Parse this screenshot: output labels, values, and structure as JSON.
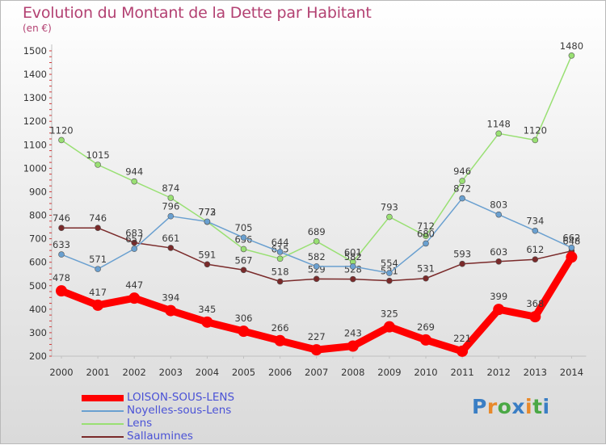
{
  "title": "Evolution du Montant de la Dette par Habitant",
  "subtitle": "(en €)",
  "brand": {
    "text": "Proxiti",
    "colors": [
      "#3a7ec4",
      "#e8892a",
      "#4aa845",
      "#3a7ec4",
      "#e8892a",
      "#4aa845",
      "#3a7ec4"
    ]
  },
  "chart_data": {
    "type": "line",
    "x": [
      "2000",
      "2001",
      "2002",
      "2003",
      "2004",
      "2005",
      "2006",
      "2007",
      "2008",
      "2009",
      "2010",
      "2011",
      "2012",
      "2013",
      "2014"
    ],
    "ylim": [
      200,
      1500
    ],
    "yticks": [
      200,
      300,
      400,
      500,
      600,
      700,
      800,
      900,
      1000,
      1100,
      1200,
      1300,
      1400,
      1500
    ],
    "grid": false,
    "legend_position": "bottom",
    "series": [
      {
        "name": "LOISON-SOUS-LENS",
        "color": "#ff0000",
        "values": [
          478,
          417,
          447,
          394,
          345,
          306,
          266,
          227,
          243,
          325,
          269,
          221,
          399,
          368,
          622
        ],
        "labels": [
          "478",
          "417",
          "447",
          "394",
          "345",
          "306",
          "266",
          "227",
          "243",
          "325",
          "269",
          "221",
          "399",
          "368",
          ""
        ]
      },
      {
        "name": "Noyelles-sous-Lens",
        "color": "#6aa0d0",
        "values": [
          633,
          571,
          657,
          796,
          773,
          705,
          644,
          582,
          582,
          554,
          680,
          872,
          803,
          734,
          662
        ],
        "labels": [
          "633",
          "571",
          "657",
          "796",
          "773",
          "705",
          "644",
          "582",
          "582",
          "554",
          "680",
          "872",
          "803",
          "734",
          "662"
        ]
      },
      {
        "name": "Lens",
        "color": "#99e073",
        "values": [
          1120,
          1015,
          944,
          874,
          772,
          656,
          615,
          689,
          601,
          793,
          712,
          946,
          1148,
          1120,
          1480
        ],
        "labels": [
          "1120",
          "1015",
          "944",
          "874",
          "772",
          "656",
          "615",
          "689",
          "601",
          "793",
          "712",
          "946",
          "1148",
          "1120",
          "1480"
        ]
      },
      {
        "name": "Sallaumines",
        "color": "#7a2a2a",
        "values": [
          746,
          746,
          683,
          661,
          591,
          567,
          518,
          529,
          528,
          521,
          531,
          593,
          603,
          612,
          648
        ],
        "labels": [
          "746",
          "746",
          "683",
          "661",
          "591",
          "567",
          "518",
          "529",
          "528",
          "521",
          "531",
          "593",
          "603",
          "612",
          "648"
        ]
      }
    ]
  }
}
